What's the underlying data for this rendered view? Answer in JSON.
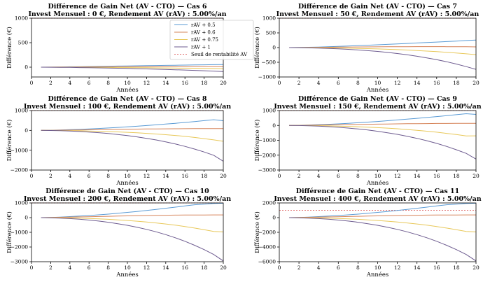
{
  "chart_data": [
    {
      "type": "line",
      "title": "Différence de Gain Net (AV - CTO) — Cas 6",
      "subtitle": "Invest Mensuel : 0 €, Rendement AV (rAV) : 5.00%/an",
      "xlabel": "Années",
      "ylabel": "Différence (€)",
      "xlim": [
        0,
        20
      ],
      "ylim": [
        -200,
        1000
      ],
      "xticks": [
        0,
        2,
        4,
        6,
        8,
        10,
        12,
        14,
        16,
        18,
        20
      ],
      "yticks": [
        0,
        500,
        1000
      ],
      "x": [
        1,
        2,
        3,
        4,
        5,
        6,
        7,
        8,
        9,
        10,
        11,
        12,
        13,
        14,
        15,
        16,
        17,
        18,
        19,
        20
      ],
      "threshold": 1000,
      "series": [
        {
          "name": "rAV + 0.5",
          "values": [
            0,
            2,
            5,
            8,
            11,
            14,
            17,
            20,
            23,
            26,
            29,
            32,
            34,
            37,
            40,
            43,
            46,
            49,
            52,
            55
          ]
        },
        {
          "name": "rAV + 0.6",
          "values": [
            0,
            1,
            3,
            4,
            6,
            7,
            8,
            9,
            10,
            11,
            12,
            12,
            13,
            13,
            13,
            13,
            13,
            13,
            13,
            12
          ]
        },
        {
          "name": "rAV + 0.75",
          "values": [
            0,
            0,
            -1,
            -2,
            -3,
            -4,
            -5,
            -6,
            -8,
            -9,
            -11,
            -12,
            -14,
            -16,
            -18,
            -20,
            -22,
            -25,
            -27,
            -30
          ]
        },
        {
          "name": "rAV + 1",
          "values": [
            0,
            -1,
            -3,
            -5,
            -8,
            -11,
            -14,
            -18,
            -22,
            -26,
            -31,
            -36,
            -41,
            -47,
            -53,
            -59,
            -66,
            -73,
            -80,
            -88
          ]
        }
      ],
      "legend": {
        "position": "upper-right",
        "entries": [
          "rAV + 0.5",
          "rAV + 0.6",
          "rAV + 0.75",
          "rAV + 1",
          "Seuil de rentabilité AV"
        ]
      }
    },
    {
      "type": "line",
      "title": "Différence de Gain Net (AV - CTO) — Cas 7",
      "subtitle": "Invest Mensuel : 50 €, Rendement AV (rAV) : 5.00%/an",
      "xlabel": "Années",
      "ylabel": "Différence (€)",
      "xlim": [
        0,
        20
      ],
      "ylim": [
        -1000,
        1000
      ],
      "xticks": [
        0,
        2,
        4,
        6,
        8,
        10,
        12,
        14,
        16,
        18,
        20
      ],
      "yticks": [
        -1000,
        -500,
        0,
        500,
        1000
      ],
      "x": [
        1,
        2,
        3,
        4,
        5,
        6,
        7,
        8,
        9,
        10,
        11,
        12,
        13,
        14,
        15,
        16,
        17,
        18,
        19,
        20
      ],
      "threshold": 1000,
      "series": [
        {
          "name": "rAV + 0.5",
          "values": [
            0,
            5,
            12,
            20,
            30,
            42,
            55,
            68,
            82,
            96,
            110,
            125,
            140,
            156,
            172,
            188,
            205,
            222,
            240,
            258
          ]
        },
        {
          "name": "rAV + 0.6",
          "values": [
            0,
            3,
            6,
            9,
            13,
            16,
            19,
            22,
            25,
            27,
            29,
            31,
            32,
            33,
            33,
            33,
            32,
            30,
            28,
            25
          ]
        },
        {
          "name": "rAV + 0.75",
          "values": [
            0,
            -1,
            -3,
            -6,
            -10,
            -15,
            -21,
            -28,
            -36,
            -46,
            -57,
            -70,
            -84,
            -100,
            -118,
            -138,
            -160,
            -185,
            -212,
            -240
          ]
        },
        {
          "name": "rAV + 1",
          "values": [
            0,
            -3,
            -9,
            -17,
            -28,
            -42,
            -60,
            -80,
            -104,
            -132,
            -165,
            -202,
            -245,
            -295,
            -350,
            -412,
            -482,
            -560,
            -647,
            -740
          ]
        }
      ]
    },
    {
      "type": "line",
      "title": "Différence de Gain Net (AV - CTO) — Cas 8",
      "subtitle": "Invest Mensuel : 100 €, Rendement AV (rAV) : 5.00%/an",
      "xlabel": "Années",
      "ylabel": "Différence (€)",
      "xlim": [
        0,
        20
      ],
      "ylim": [
        -2000,
        1000
      ],
      "xticks": [
        0,
        2,
        4,
        6,
        8,
        10,
        12,
        14,
        16,
        18,
        20
      ],
      "yticks": [
        -2000,
        -1000,
        0,
        1000
      ],
      "x": [
        1,
        2,
        3,
        4,
        5,
        6,
        7,
        8,
        9,
        10,
        11,
        12,
        13,
        14,
        15,
        16,
        17,
        18,
        19,
        20
      ],
      "threshold": 1000,
      "series": [
        {
          "name": "rAV + 0.5",
          "values": [
            0,
            8,
            20,
            35,
            52,
            72,
            95,
            120,
            148,
            178,
            210,
            244,
            280,
            318,
            358,
            400,
            444,
            490,
            538,
            488
          ]
        },
        {
          "name": "rAV + 0.6",
          "values": [
            0,
            5,
            11,
            17,
            24,
            31,
            38,
            45,
            52,
            58,
            64,
            70,
            75,
            80,
            84,
            87,
            90,
            91,
            92,
            92
          ]
        },
        {
          "name": "rAV + 0.75",
          "values": [
            0,
            -2,
            -6,
            -12,
            -20,
            -30,
            -43,
            -58,
            -76,
            -97,
            -121,
            -149,
            -181,
            -217,
            -258,
            -304,
            -356,
            -414,
            -478,
            -550
          ]
        },
        {
          "name": "rAV + 1",
          "values": [
            0,
            -6,
            -17,
            -33,
            -55,
            -83,
            -117,
            -158,
            -206,
            -262,
            -326,
            -400,
            -484,
            -579,
            -686,
            -806,
            -940,
            -1089,
            -1254,
            -1560
          ]
        }
      ]
    },
    {
      "type": "line",
      "title": "Différence de Gain Net (AV - CTO) — Cas 9",
      "subtitle": "Invest Mensuel : 150 €, Rendement AV (rAV) : 5.00%/an",
      "xlabel": "Années",
      "ylabel": "Différence (€)",
      "xlim": [
        0,
        20
      ],
      "ylim": [
        -3000,
        1000
      ],
      "xticks": [
        0,
        2,
        4,
        6,
        8,
        10,
        12,
        14,
        16,
        18,
        20
      ],
      "yticks": [
        -3000,
        -2000,
        -1000,
        0,
        1000
      ],
      "x": [
        1,
        2,
        3,
        4,
        5,
        6,
        7,
        8,
        9,
        10,
        11,
        12,
        13,
        14,
        15,
        16,
        17,
        18,
        19,
        20
      ],
      "threshold": 1000,
      "series": [
        {
          "name": "rAV + 0.5",
          "values": [
            0,
            12,
            30,
            52,
            78,
            108,
            142,
            180,
            222,
            268,
            316,
            368,
            422,
            478,
            536,
            596,
            658,
            722,
            788,
            740
          ]
        },
        {
          "name": "rAV + 0.6",
          "values": [
            0,
            8,
            17,
            26,
            36,
            47,
            57,
            68,
            78,
            88,
            97,
            106,
            114,
            121,
            127,
            132,
            135,
            138,
            139,
            140
          ]
        },
        {
          "name": "rAV + 0.75",
          "values": [
            0,
            -3,
            -9,
            -18,
            -30,
            -45,
            -64,
            -87,
            -114,
            -146,
            -183,
            -225,
            -273,
            -327,
            -388,
            -456,
            -532,
            -616,
            -709,
            -700
          ]
        },
        {
          "name": "rAV + 1",
          "values": [
            0,
            -9,
            -25,
            -49,
            -82,
            -124,
            -175,
            -237,
            -310,
            -394,
            -490,
            -600,
            -726,
            -868,
            -1028,
            -1208,
            -1410,
            -1634,
            -1882,
            -2260
          ]
        }
      ]
    },
    {
      "type": "line",
      "title": "Différence de Gain Net (AV - CTO) — Cas 10",
      "subtitle": "Invest Mensuel : 200 €, Rendement AV (rAV) : 5.00%/an",
      "xlabel": "Années",
      "ylabel": "Différence (€)",
      "xlim": [
        0,
        20
      ],
      "ylim": [
        -3000,
        1000
      ],
      "xticks": [
        0,
        2,
        4,
        6,
        8,
        10,
        12,
        14,
        16,
        18,
        20
      ],
      "yticks": [
        -3000,
        -2000,
        -1000,
        0,
        1000
      ],
      "x": [
        1,
        2,
        3,
        4,
        5,
        6,
        7,
        8,
        9,
        10,
        11,
        12,
        13,
        14,
        15,
        16,
        17,
        18,
        19,
        20
      ],
      "threshold": 1000,
      "series": [
        {
          "name": "rAV + 0.5",
          "values": [
            0,
            16,
            40,
            70,
            104,
            144,
            190,
            240,
            296,
            356,
            420,
            490,
            562,
            638,
            716,
            796,
            876,
            920,
            960,
            980
          ]
        },
        {
          "name": "rAV + 0.6",
          "values": [
            0,
            10,
            22,
            35,
            48,
            62,
            76,
            90,
            104,
            117,
            130,
            142,
            152,
            162,
            170,
            176,
            180,
            182,
            184,
            185
          ]
        },
        {
          "name": "rAV + 0.75",
          "values": [
            0,
            -4,
            -12,
            -24,
            -40,
            -60,
            -86,
            -116,
            -152,
            -194,
            -243,
            -299,
            -363,
            -435,
            -516,
            -607,
            -708,
            -820,
            -944,
            -970
          ]
        },
        {
          "name": "rAV + 1",
          "values": [
            0,
            -12,
            -33,
            -65,
            -109,
            -165,
            -233,
            -316,
            -413,
            -525,
            -653,
            -800,
            -968,
            -1158,
            -1371,
            -1611,
            -1880,
            -2178,
            -2509,
            -2950
          ]
        }
      ]
    },
    {
      "type": "line",
      "title": "Différence de Gain Net (AV - CTO) — Cas 11",
      "subtitle": "Invest Mensuel : 400 €, Rendement AV (rAV) : 5.00%/an",
      "xlabel": "Années",
      "ylabel": "Différence (€)",
      "xlim": [
        0,
        20
      ],
      "ylim": [
        -6000,
        2000
      ],
      "xticks": [
        0,
        2,
        4,
        6,
        8,
        10,
        12,
        14,
        16,
        18,
        20
      ],
      "yticks": [
        -6000,
        -4000,
        -2000,
        0,
        2000
      ],
      "x": [
        1,
        2,
        3,
        4,
        5,
        6,
        7,
        8,
        9,
        10,
        11,
        12,
        13,
        14,
        15,
        16,
        17,
        18,
        19,
        20
      ],
      "threshold": 1000,
      "series": [
        {
          "name": "rAV + 0.5",
          "values": [
            0,
            32,
            80,
            140,
            208,
            288,
            380,
            480,
            592,
            712,
            840,
            980,
            1124,
            1276,
            1432,
            1592,
            1752,
            1840,
            1920,
            1960
          ]
        },
        {
          "name": "rAV + 0.6",
          "values": [
            0,
            20,
            44,
            70,
            96,
            124,
            152,
            180,
            208,
            234,
            260,
            284,
            304,
            324,
            340,
            352,
            360,
            364,
            368,
            370
          ]
        },
        {
          "name": "rAV + 0.75",
          "values": [
            0,
            -8,
            -24,
            -48,
            -80,
            -120,
            -172,
            -232,
            -304,
            -388,
            -486,
            -598,
            -726,
            -870,
            -1032,
            -1214,
            -1416,
            -1640,
            -1888,
            -1940
          ]
        },
        {
          "name": "rAV + 1",
          "values": [
            0,
            -24,
            -66,
            -130,
            -218,
            -330,
            -466,
            -632,
            -826,
            -1050,
            -1306,
            -1600,
            -1936,
            -2316,
            -2742,
            -3222,
            -3760,
            -4356,
            -5018,
            -5900
          ]
        }
      ]
    }
  ],
  "colors": {
    "series": [
      "#5b9bd5",
      "#d6845a",
      "#e8c85a",
      "#6d5b8f"
    ],
    "threshold": "#e07070",
    "axis": "#000000",
    "background": "#ffffff"
  }
}
